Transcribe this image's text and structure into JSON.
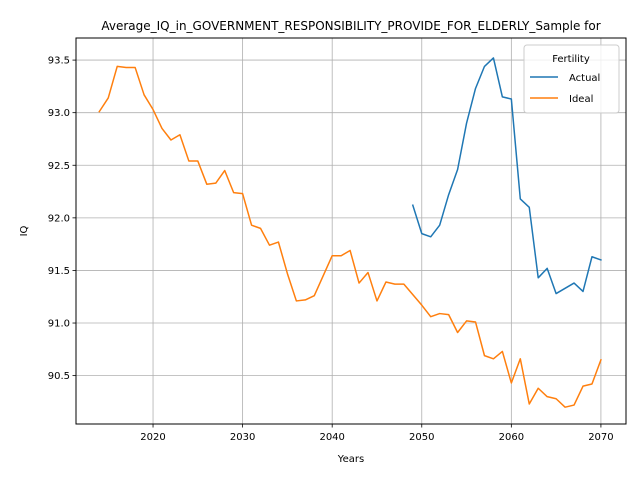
{
  "chart_data": {
    "type": "line",
    "title": "Average_IQ_in_GOVERNMENT_RESPONSIBILITY_PROVIDE_FOR_ELDERLY_Sample for",
    "xlabel": "Years",
    "ylabel": "IQ",
    "xlim": [
      2011.4,
      2072.8
    ],
    "ylim": [
      90.04,
      93.71
    ],
    "xticks": [
      2020,
      2030,
      2040,
      2050,
      2060,
      2070
    ],
    "yticks": [
      90.5,
      91.0,
      91.5,
      92.0,
      92.5,
      93.0,
      93.5
    ],
    "xtick_labels": [
      "2020",
      "2030",
      "2040",
      "2050",
      "2060",
      "2070"
    ],
    "ytick_labels": [
      "90.5",
      "91.0",
      "91.5",
      "92.0",
      "92.5",
      "93.0",
      "93.5"
    ],
    "grid": true,
    "legend": {
      "title": "Fertility",
      "placement": "top-right"
    },
    "series": [
      {
        "name": "Actual",
        "color": "#1f77b4",
        "points": [
          [
            2049,
            92.12
          ],
          [
            2050,
            91.85
          ],
          [
            2051,
            91.82
          ],
          [
            2052,
            91.93
          ],
          [
            2053,
            92.22
          ],
          [
            2054,
            92.46
          ],
          [
            2055,
            92.9
          ],
          [
            2056,
            93.23
          ],
          [
            2057,
            93.44
          ],
          [
            2058,
            93.52
          ],
          [
            2059,
            93.15
          ],
          [
            2060,
            93.13
          ],
          [
            2061,
            92.18
          ],
          [
            2062,
            92.1
          ],
          [
            2063,
            91.43
          ],
          [
            2064,
            91.52
          ],
          [
            2065,
            91.28
          ],
          [
            2066,
            91.33
          ],
          [
            2067,
            91.38
          ],
          [
            2068,
            91.3
          ],
          [
            2069,
            91.63
          ],
          [
            2070,
            91.6
          ]
        ]
      },
      {
        "name": "Ideal",
        "color": "#ff7f0e",
        "points": [
          [
            2014,
            93.01
          ],
          [
            2015,
            93.14
          ],
          [
            2016,
            93.44
          ],
          [
            2017,
            93.43
          ],
          [
            2018,
            93.43
          ],
          [
            2019,
            93.17
          ],
          [
            2020,
            93.03
          ],
          [
            2021,
            92.85
          ],
          [
            2022,
            92.74
          ],
          [
            2023,
            92.79
          ],
          [
            2024,
            92.54
          ],
          [
            2025,
            92.54
          ],
          [
            2026,
            92.32
          ],
          [
            2027,
            92.33
          ],
          [
            2028,
            92.45
          ],
          [
            2029,
            92.24
          ],
          [
            2030,
            92.23
          ],
          [
            2031,
            91.93
          ],
          [
            2032,
            91.9
          ],
          [
            2033,
            91.74
          ],
          [
            2034,
            91.77
          ],
          [
            2035,
            91.47
          ],
          [
            2036,
            91.21
          ],
          [
            2037,
            91.22
          ],
          [
            2038,
            91.26
          ],
          [
            2039,
            91.45
          ],
          [
            2040,
            91.64
          ],
          [
            2041,
            91.64
          ],
          [
            2042,
            91.69
          ],
          [
            2043,
            91.38
          ],
          [
            2044,
            91.48
          ],
          [
            2045,
            91.21
          ],
          [
            2046,
            91.39
          ],
          [
            2047,
            91.37
          ],
          [
            2048,
            91.37
          ],
          [
            2049,
            91.27
          ],
          [
            2050,
            91.17
          ],
          [
            2051,
            91.06
          ],
          [
            2052,
            91.09
          ],
          [
            2053,
            91.08
          ],
          [
            2054,
            90.91
          ],
          [
            2055,
            91.02
          ],
          [
            2056,
            91.01
          ],
          [
            2057,
            90.69
          ],
          [
            2058,
            90.66
          ],
          [
            2059,
            90.73
          ],
          [
            2060,
            90.43
          ],
          [
            2061,
            90.66
          ],
          [
            2062,
            90.23
          ],
          [
            2063,
            90.38
          ],
          [
            2064,
            90.3
          ],
          [
            2065,
            90.28
          ],
          [
            2066,
            90.2
          ],
          [
            2067,
            90.22
          ],
          [
            2068,
            90.4
          ],
          [
            2069,
            90.42
          ],
          [
            2070,
            90.65
          ]
        ]
      }
    ]
  }
}
